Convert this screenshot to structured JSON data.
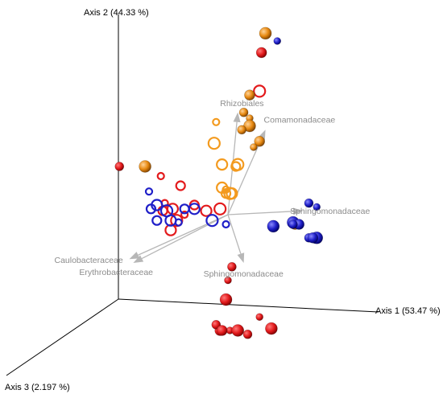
{
  "chart_data": {
    "type": "scatter",
    "projection": "3d-pcoa-biplot",
    "axes": [
      {
        "name": "Axis 1",
        "label": "Axis 1 (53.47 %)",
        "explained_pct": 53.47
      },
      {
        "name": "Axis 2",
        "label": "Axis 2 (44.33 %)",
        "explained_pct": 44.33
      },
      {
        "name": "Axis 3",
        "label": "Axis 3 (2.197 %)",
        "explained_pct": 2.197
      }
    ],
    "colors": {
      "red": "#e31a1c",
      "orange": "#f39a1e",
      "blue": "#1f1fc8",
      "arrow": "#b7b7b7",
      "label": "#8c8c8c"
    },
    "series": [
      {
        "color": "red",
        "marker": "ring",
        "points": [
          [
            -0.32,
            0.06
          ],
          [
            -0.33,
            0.02
          ],
          [
            -0.28,
            0.03
          ],
          [
            -0.26,
            -0.03
          ],
          [
            -0.22,
            0.0
          ],
          [
            -0.17,
            0.05
          ],
          [
            -0.11,
            0.02
          ],
          [
            -0.04,
            0.03
          ],
          [
            -0.34,
            0.2
          ],
          [
            -0.24,
            0.15
          ],
          [
            -0.29,
            -0.08
          ],
          [
            0.16,
            0.64
          ]
        ]
      },
      {
        "color": "red",
        "marker": "solid",
        "points": [
          [
            0.02,
            -0.27
          ],
          [
            0.0,
            -0.34
          ],
          [
            -0.01,
            -0.44
          ],
          [
            -0.04,
            -0.6
          ],
          [
            -0.06,
            -0.57
          ],
          [
            0.01,
            -0.6
          ],
          [
            0.05,
            -0.6
          ],
          [
            -0.03,
            -0.6
          ],
          [
            0.1,
            -0.62
          ],
          [
            0.16,
            -0.53
          ],
          [
            0.22,
            -0.59
          ],
          [
            0.17,
            0.84
          ],
          [
            -0.55,
            0.25
          ]
        ]
      },
      {
        "color": "orange",
        "marker": "ring",
        "points": [
          [
            -0.03,
            0.26
          ],
          [
            -0.07,
            0.37
          ],
          [
            -0.01,
            0.13
          ],
          [
            -0.01,
            0.11
          ],
          [
            0.02,
            0.11
          ],
          [
            0.01,
            0.11
          ],
          [
            -0.06,
            0.48
          ],
          [
            0.04,
            0.25
          ],
          [
            -0.03,
            0.14
          ],
          [
            0.05,
            0.26
          ]
        ]
      },
      {
        "color": "orange",
        "marker": "solid",
        "points": [
          [
            0.19,
            0.94
          ],
          [
            0.11,
            0.62
          ],
          [
            0.08,
            0.53
          ],
          [
            0.11,
            0.5
          ],
          [
            0.11,
            0.46
          ],
          [
            0.16,
            0.38
          ],
          [
            0.07,
            0.44
          ],
          [
            0.13,
            0.35
          ],
          [
            -0.42,
            0.25
          ],
          [
            0.34,
            -0.05
          ]
        ]
      },
      {
        "color": "blue",
        "marker": "ring",
        "points": [
          [
            -0.4,
            0.12
          ],
          [
            -0.39,
            0.03
          ],
          [
            -0.36,
            0.05
          ],
          [
            -0.31,
            0.02
          ],
          [
            -0.25,
            -0.04
          ],
          [
            -0.22,
            0.03
          ],
          [
            -0.17,
            0.03
          ],
          [
            -0.08,
            -0.03
          ],
          [
            -0.01,
            -0.05
          ],
          [
            -0.36,
            -0.03
          ],
          [
            -0.29,
            -0.03
          ]
        ]
      },
      {
        "color": "blue",
        "marker": "solid",
        "points": [
          [
            0.41,
            0.06
          ],
          [
            0.45,
            0.04
          ],
          [
            0.33,
            -0.04
          ],
          [
            0.36,
            -0.05
          ],
          [
            0.41,
            -0.12
          ],
          [
            0.44,
            -0.13
          ],
          [
            0.45,
            -0.12
          ],
          [
            0.43,
            -0.12
          ],
          [
            0.33,
            -0.05
          ],
          [
            0.25,
            0.9
          ],
          [
            0.23,
            -0.06
          ]
        ]
      }
    ],
    "biplot_arrows": [
      {
        "label": "Rhizobiales",
        "x": 0.05,
        "y": 0.53
      },
      {
        "label": "Comamonadaceae",
        "x": 0.19,
        "y": 0.44
      },
      {
        "label": "Sphingomonadaceae",
        "x": 0.38,
        "y": 0.02
      },
      {
        "label": "Sphingomonadaceae",
        "x": 0.08,
        "y": -0.25
      },
      {
        "label": "Caulobacteraceae",
        "x": -0.5,
        "y": -0.23
      },
      {
        "label": "Erythrobacteraceae",
        "x": -0.48,
        "y": -0.25
      }
    ]
  }
}
